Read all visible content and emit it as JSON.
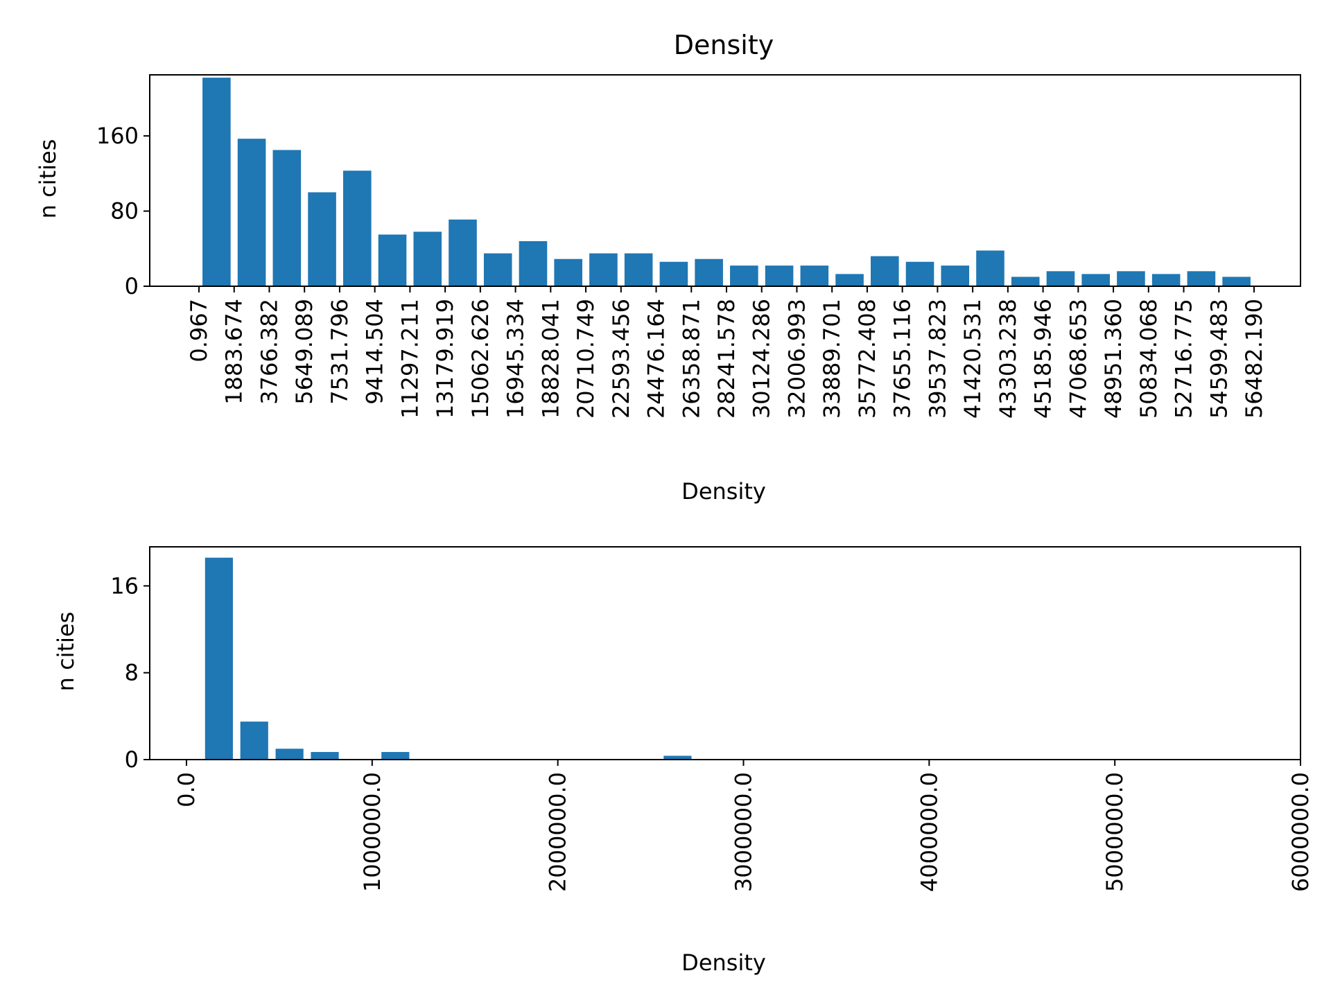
{
  "chart_data": [
    {
      "type": "bar",
      "title": "Density",
      "xlabel": "Density",
      "ylabel": "n cities",
      "bar_color": "#1f77b4",
      "ylim": [
        0,
        225
      ],
      "yticks": [
        0,
        80,
        160
      ],
      "xtick_labels": [
        "0.967",
        "1883.674",
        "3766.382",
        "5649.089",
        "7531.796",
        "9414.504",
        "11297.211",
        "13179.919",
        "15062.626",
        "16945.334",
        "18828.041",
        "20710.749",
        "22593.456",
        "24476.164",
        "26358.871",
        "28241.578",
        "30124.286",
        "32006.993",
        "33889.701",
        "35772.408",
        "37655.116",
        "39537.823",
        "41420.531",
        "43303.238",
        "45185.946",
        "47068.653",
        "48951.360",
        "50834.068",
        "52716.775",
        "54599.483",
        "56482.190"
      ],
      "values": [
        222,
        157,
        145,
        100,
        123,
        55,
        58,
        71,
        35,
        48,
        29,
        35,
        35,
        26,
        29,
        22,
        22,
        22,
        13,
        32,
        26,
        22,
        38,
        10,
        16,
        13,
        16,
        13,
        16,
        10
      ],
      "grid": false
    },
    {
      "type": "bar",
      "title": "",
      "xlabel": "Density",
      "ylabel": "n cities",
      "bar_color": "#1f77b4",
      "xlim": [
        -200000,
        6000000
      ],
      "ylim": [
        0,
        19.6
      ],
      "yticks": [
        0,
        8,
        16
      ],
      "xtick_labels": [
        "0.0",
        "1000000.0",
        "2000000.0",
        "3000000.0",
        "4000000.0",
        "5000000.0",
        "6000000.0"
      ],
      "bar_width": 150000,
      "bars": [
        {
          "x": 100000,
          "value": 18.6
        },
        {
          "x": 290000,
          "value": 3.5
        },
        {
          "x": 480000,
          "value": 1
        },
        {
          "x": 670000,
          "value": 0.7
        },
        {
          "x": 1050000,
          "value": 0.7
        },
        {
          "x": 2570000,
          "value": 0.35
        }
      ],
      "grid": false
    }
  ]
}
